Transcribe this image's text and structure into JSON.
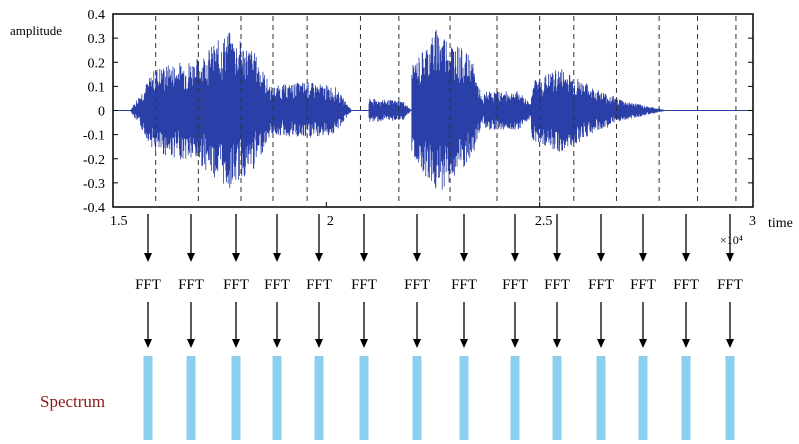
{
  "plot": {
    "ylabel": "amplitude",
    "xlabel": "time",
    "x_exponent": "×10⁴",
    "ylim": [
      -0.4,
      0.4
    ],
    "xlim": [
      1.5,
      3
    ],
    "ytick_labels": [
      "0.4",
      "0.3",
      "0.2",
      "0.1",
      "0",
      "-0.1",
      "-0.2",
      "-0.3",
      "-0.4"
    ],
    "xtick_labels": [
      "1.5",
      "2",
      "2.5",
      "3"
    ],
    "xtick_values": [
      1.5,
      2,
      2.5,
      3
    ],
    "waveform_color": "#2b3fa8",
    "frame_boundaries": [
      1.5,
      1.6,
      1.7,
      1.8,
      1.875,
      1.955,
      2.08,
      2.17,
      2.29,
      2.4,
      2.5,
      2.58,
      2.68,
      2.78,
      2.87,
      2.96
    ]
  },
  "pipeline": {
    "fft_label": "FFT",
    "frame_count": 14,
    "spectrum_label": "Spectrum",
    "spectrum_color": "#8ccfee"
  }
}
